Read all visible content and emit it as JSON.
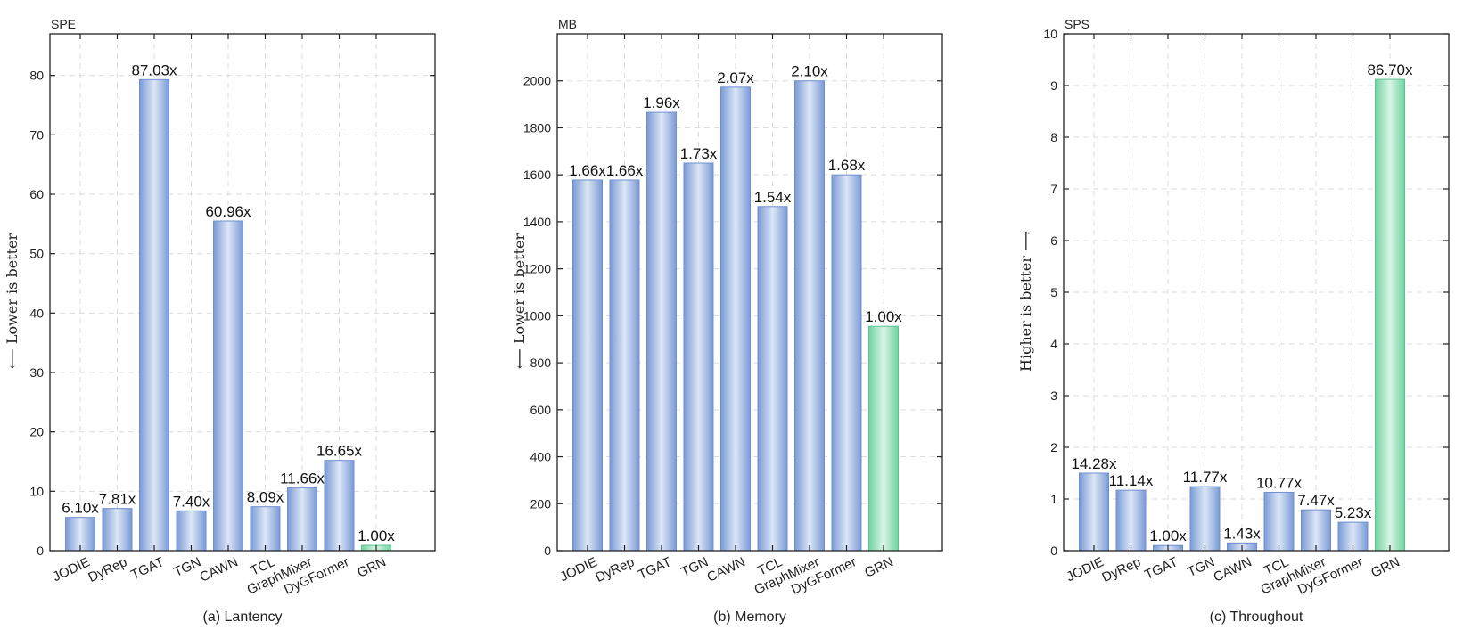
{
  "chart_data": [
    {
      "type": "bar",
      "caption": "(a) Lantency",
      "unit": "SPE",
      "ylabel": "⟵ Lower is better",
      "categories": [
        "JODIE",
        "DyRep",
        "TGAT",
        "TGN",
        "CAWN",
        "TCL",
        "GraphMixer",
        "DyGFormer",
        "GRN"
      ],
      "values": [
        5.6,
        7.1,
        79.3,
        6.7,
        55.5,
        7.4,
        10.6,
        15.2,
        0.9
      ],
      "data_labels": [
        "6.10x",
        "7.81x",
        "87.03x",
        "7.40x",
        "60.96x",
        "8.09x",
        "11.66x",
        "16.65x",
        "1.00x"
      ],
      "ylim": [
        0,
        87
      ],
      "yticks": [
        0,
        10,
        20,
        30,
        40,
        50,
        60,
        70,
        80
      ],
      "grid": true,
      "highlight_index": 8
    },
    {
      "type": "bar",
      "caption": "(b) Memory",
      "unit": "MB",
      "ylabel": "⟵ Lower is better",
      "categories": [
        "JODIE",
        "DyRep",
        "TGAT",
        "TGN",
        "CAWN",
        "TCL",
        "GraphMixer",
        "DyGFormer",
        "GRN"
      ],
      "values": [
        1578,
        1578,
        1866,
        1650,
        1973,
        1465,
        2000,
        1600,
        955
      ],
      "data_labels": [
        "1.66x",
        "1.66x",
        "1.96x",
        "1.73x",
        "2.07x",
        "1.54x",
        "2.10x",
        "1.68x",
        "1.00x"
      ],
      "ylim": [
        0,
        2200
      ],
      "yticks": [
        0,
        200,
        400,
        600,
        800,
        1000,
        1200,
        1400,
        1600,
        1800,
        2000
      ],
      "grid": true,
      "highlight_index": 8
    },
    {
      "type": "bar",
      "caption": "(c) Throughout",
      "unit": "SPS",
      "ylabel": "Higher is better ⟶",
      "categories": [
        "JODIE",
        "DyRep",
        "TGAT",
        "TGN",
        "CAWN",
        "TCL",
        "GraphMixer",
        "DyGFormer",
        "GRN"
      ],
      "values": [
        1.5,
        1.17,
        0.1,
        1.24,
        0.15,
        1.13,
        0.79,
        0.55,
        9.12
      ],
      "data_labels": [
        "14.28x",
        "11.14x",
        "1.00x",
        "11.77x",
        "1.43x",
        "10.77x",
        "7.47x",
        "5.23x",
        "86.70x"
      ],
      "ylim": [
        0,
        10
      ],
      "yticks": [
        0,
        1,
        2,
        3,
        4,
        5,
        6,
        7,
        8,
        9,
        10
      ],
      "grid": true,
      "highlight_index": 8
    }
  ],
  "colors": {
    "bar_edge": "#6f90d0",
    "bar_center": "#dce6f6",
    "bar_side": "#7a9ad6",
    "highlight_edge": "#5cc48f",
    "highlight_center": "#d9f4e6",
    "highlight_side": "#6fd3a0",
    "grid": "#dddddd",
    "axis": "#222222"
  }
}
